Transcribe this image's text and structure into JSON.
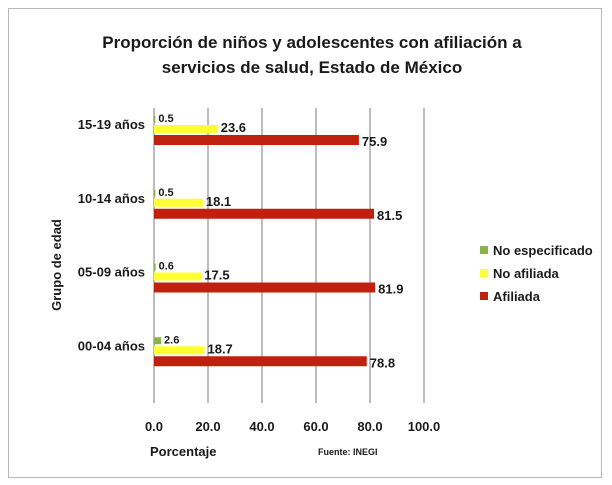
{
  "chart_data": {
    "type": "bar",
    "orientation": "horizontal",
    "title": "Proporción de niños y adolescentes con afiliación a servicios de salud, Estado de México",
    "title_lines": [
      "Proporción de niños y adolescentes con afiliación a",
      "servicios de salud, Estado de México"
    ],
    "xlabel": "Porcentaje",
    "ylabel": "Grupo de edad",
    "source": "Fuente: INEGI",
    "xlim": [
      0,
      100
    ],
    "xticks": [
      "0.0",
      "20.0",
      "40.0",
      "60.0",
      "80.0",
      "100.0"
    ],
    "grid": "vertical",
    "legend_position": "right",
    "categories": [
      "15-19 años",
      "10-14 años",
      "05-09 años",
      "00-04 años"
    ],
    "series": [
      {
        "name": "No especificado",
        "color": "#8cb34a",
        "values": [
          0.5,
          0.5,
          0.6,
          2.6
        ],
        "labels": [
          "0.5",
          "0.5",
          "0.6",
          "2.6"
        ]
      },
      {
        "name": "No afiliada",
        "color": "#ffff33",
        "values": [
          23.6,
          18.1,
          17.5,
          18.7
        ],
        "labels": [
          "23.6",
          "18.1",
          "17.5",
          "18.7"
        ]
      },
      {
        "name": "Afiliada",
        "color": "#c0210f",
        "values": [
          75.9,
          81.5,
          81.9,
          78.8
        ],
        "labels": [
          "75.9",
          "81.5",
          "81.9",
          "78.8"
        ]
      }
    ],
    "legend_order": [
      "No especificado",
      "No afiliada",
      "Afiliada"
    ]
  }
}
